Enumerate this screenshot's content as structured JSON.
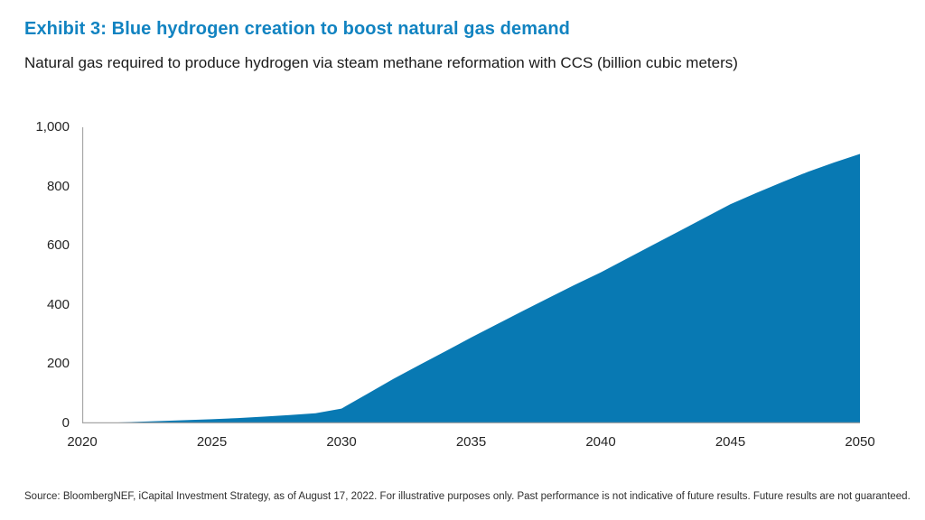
{
  "header": {
    "title": "Exhibit 3: Blue hydrogen creation to boost natural gas demand",
    "subtitle": "Natural gas required to produce hydrogen via steam methane reformation with CCS (billion cubic meters)"
  },
  "colors": {
    "title_blue": "#1183C1",
    "area_blue": "#0879B3",
    "axis_gray": "#A6A6A6",
    "tick_text": "#262626",
    "source_text": "#2e2e2e"
  },
  "chart_data": {
    "type": "area",
    "title": "Exhibit 3: Blue hydrogen creation to boost natural gas demand",
    "subtitle": "Natural gas required to produce hydrogen via steam methane reformation with CCS (billion cubic meters)",
    "series_name": "Natural gas required for blue hydrogen (billion cubic meters)",
    "x": [
      2020,
      2021,
      2022,
      2023,
      2024,
      2025,
      2026,
      2027,
      2028,
      2029,
      2030,
      2031,
      2032,
      2033,
      2034,
      2035,
      2036,
      2037,
      2038,
      2039,
      2040,
      2041,
      2042,
      2043,
      2044,
      2045,
      2046,
      2047,
      2048,
      2049,
      2050
    ],
    "values": [
      0,
      2,
      5,
      8,
      11,
      14,
      18,
      23,
      28,
      34,
      50,
      100,
      150,
      197,
      243,
      290,
      335,
      380,
      424,
      468,
      510,
      556,
      602,
      648,
      694,
      740,
      778,
      815,
      850,
      881,
      910
    ],
    "xlabel": "",
    "ylabel": "",
    "xlim": [
      2020,
      2050
    ],
    "ylim": [
      0,
      1000
    ],
    "xticks": [
      "2020",
      "2025",
      "2030",
      "2035",
      "2040",
      "2045",
      "2050"
    ],
    "xtick_years": [
      2020,
      2025,
      2030,
      2035,
      2040,
      2045,
      2050
    ],
    "yticks": [
      "0",
      "200",
      "400",
      "600",
      "800",
      "1,000"
    ],
    "ytick_values": [
      0,
      200,
      400,
      600,
      800,
      1000
    ],
    "grid": false,
    "legend_position": "none",
    "area_color": "#0879B3",
    "axis_color": "#A6A6A6"
  },
  "footer": {
    "source": "Source: BloombergNEF, iCapital Investment Strategy, as of August 17, 2022. For illustrative purposes only. Past performance is not indicative of future results. Future results are not guaranteed."
  }
}
